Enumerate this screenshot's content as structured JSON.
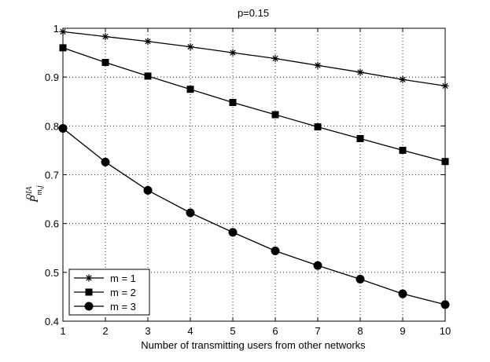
{
  "chart_data": {
    "type": "line",
    "title": "p=0.15",
    "xlabel": "Number of transmitting users from other networks",
    "ylabel": {
      "base": "P",
      "subscript": "m,j",
      "superscript": "OIA"
    },
    "x": [
      1,
      2,
      3,
      4,
      5,
      6,
      7,
      8,
      9,
      10
    ],
    "xlim": [
      1,
      10
    ],
    "ylim": [
      0.4,
      1.0
    ],
    "xticks": [
      "1",
      "2",
      "3",
      "4",
      "5",
      "6",
      "7",
      "8",
      "9",
      "10"
    ],
    "yticks": [
      "0.4",
      "0.5",
      "0.6",
      "0.7",
      "0.8",
      "0.9",
      "1"
    ],
    "grid": true,
    "legend_position": "bottom-left",
    "series": [
      {
        "name": "m = 1",
        "marker": "asterisk",
        "values": [
          0.993,
          0.983,
          0.973,
          0.962,
          0.95,
          0.938,
          0.924,
          0.91,
          0.895,
          0.882
        ]
      },
      {
        "name": "m = 2",
        "marker": "square",
        "values": [
          0.96,
          0.93,
          0.902,
          0.875,
          0.848,
          0.823,
          0.798,
          0.774,
          0.75,
          0.727
        ]
      },
      {
        "name": "m = 3",
        "marker": "circle",
        "values": [
          0.795,
          0.726,
          0.668,
          0.622,
          0.582,
          0.544,
          0.514,
          0.486,
          0.456,
          0.434
        ]
      }
    ],
    "colors": {
      "line": "#000000",
      "background": "#ffffff"
    }
  }
}
